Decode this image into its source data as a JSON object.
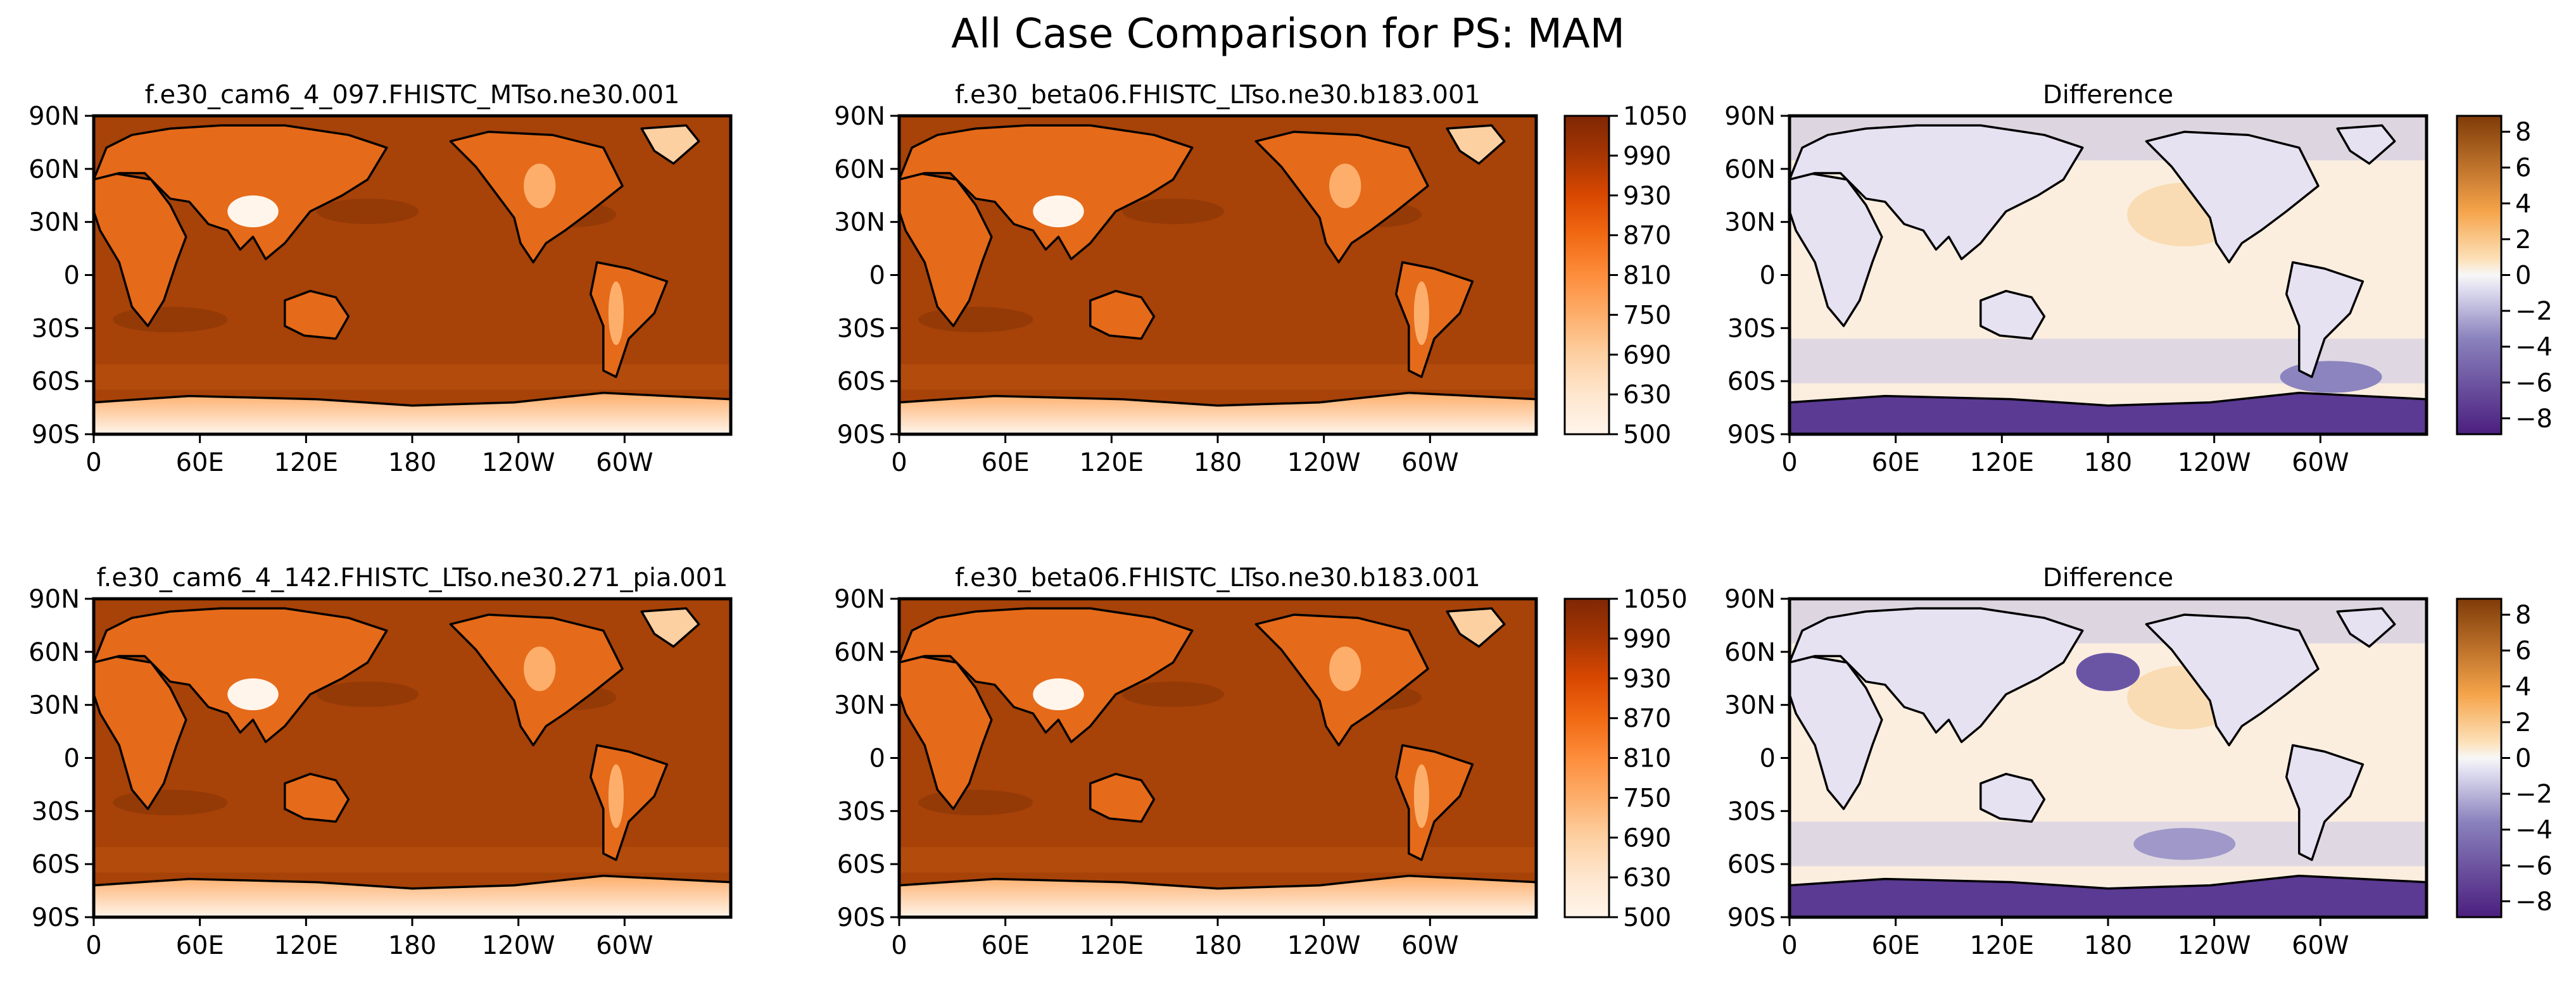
{
  "figure_title": "All Case Comparison for PS: MAM",
  "colors": {
    "orange_ramp": [
      "#fff5eb",
      "#fee6ce",
      "#fdd0a2",
      "#fdae6b",
      "#fd8d3c",
      "#f16913",
      "#d94801",
      "#a63603",
      "#7f2704"
    ],
    "ocean": "#a74208",
    "ocean_dark": "#943a07",
    "diff_ocean": "#fbeedf",
    "diff_purple": "#c9c6e3",
    "diff_purple_dark": "#4b1f7f",
    "coast": "#000000"
  },
  "chart_data": [
    {
      "type": "heatmap",
      "panel": "row1-col1",
      "title": "f.e30_cam6_4_097.FHISTC_MTso.ne30.001",
      "variable": "PS",
      "season": "MAM",
      "lon_ticks": [
        "0",
        "60E",
        "120E",
        "180",
        "120W",
        "60W"
      ],
      "lat_ticks": [
        "90N",
        "60N",
        "30N",
        "0",
        "30S",
        "60S",
        "90S"
      ],
      "xlim": [
        0,
        360
      ],
      "ylim": [
        -90,
        90
      ],
      "colorscale": "orange"
    },
    {
      "type": "heatmap",
      "panel": "row1-col2",
      "title": "f.e30_beta06.FHISTC_LTso.ne30.b183.001",
      "variable": "PS",
      "season": "MAM",
      "lon_ticks": [
        "0",
        "60E",
        "120E",
        "180",
        "120W",
        "60W"
      ],
      "lat_ticks": [
        "90N",
        "60N",
        "30N",
        "0",
        "30S",
        "60S",
        "90S"
      ],
      "xlim": [
        0,
        360
      ],
      "ylim": [
        -90,
        90
      ],
      "colorscale": "orange",
      "colorbar_ticks": [
        "1050",
        "990",
        "930",
        "870",
        "810",
        "750",
        "690",
        "630",
        "500"
      ],
      "colorbar_range": [
        500,
        1050
      ]
    },
    {
      "type": "heatmap",
      "panel": "row1-col3",
      "title": "Difference",
      "variable": "PS",
      "season": "MAM",
      "lon_ticks": [
        "0",
        "60E",
        "120E",
        "180",
        "120W",
        "60W"
      ],
      "lat_ticks": [
        "90N",
        "60N",
        "30N",
        "0",
        "30S",
        "60S",
        "90S"
      ],
      "xlim": [
        0,
        360
      ],
      "ylim": [
        -90,
        90
      ],
      "colorscale": "diverging",
      "colorbar_ticks": [
        "8",
        "6",
        "4",
        "2",
        "0",
        "−2",
        "−4",
        "−6",
        "−8"
      ],
      "colorbar_range": [
        -9,
        9
      ]
    },
    {
      "type": "heatmap",
      "panel": "row2-col1",
      "title": "f.e30_cam6_4_142.FHISTC_LTso.ne30.271_pia.001",
      "variable": "PS",
      "season": "MAM",
      "lon_ticks": [
        "0",
        "60E",
        "120E",
        "180",
        "120W",
        "60W"
      ],
      "lat_ticks": [
        "90N",
        "60N",
        "30N",
        "0",
        "30S",
        "60S",
        "90S"
      ],
      "xlim": [
        0,
        360
      ],
      "ylim": [
        -90,
        90
      ],
      "colorscale": "orange"
    },
    {
      "type": "heatmap",
      "panel": "row2-col2",
      "title": "f.e30_beta06.FHISTC_LTso.ne30.b183.001",
      "variable": "PS",
      "season": "MAM",
      "lon_ticks": [
        "0",
        "60E",
        "120E",
        "180",
        "120W",
        "60W"
      ],
      "lat_ticks": [
        "90N",
        "60N",
        "30N",
        "0",
        "30S",
        "60S",
        "90S"
      ],
      "xlim": [
        0,
        360
      ],
      "ylim": [
        -90,
        90
      ],
      "colorscale": "orange",
      "colorbar_ticks": [
        "1050",
        "990",
        "930",
        "870",
        "810",
        "750",
        "690",
        "630",
        "500"
      ],
      "colorbar_range": [
        500,
        1050
      ]
    },
    {
      "type": "heatmap",
      "panel": "row2-col3",
      "title": "Difference",
      "variable": "PS",
      "season": "MAM",
      "lon_ticks": [
        "0",
        "60E",
        "120E",
        "180",
        "120W",
        "60W"
      ],
      "lat_ticks": [
        "90N",
        "60N",
        "30N",
        "0",
        "30S",
        "60S",
        "90S"
      ],
      "xlim": [
        0,
        360
      ],
      "ylim": [
        -90,
        90
      ],
      "colorscale": "diverging",
      "colorbar_ticks": [
        "8",
        "6",
        "4",
        "2",
        "0",
        "−2",
        "−4",
        "−6",
        "−8"
      ],
      "colorbar_range": [
        -9,
        9
      ]
    }
  ]
}
